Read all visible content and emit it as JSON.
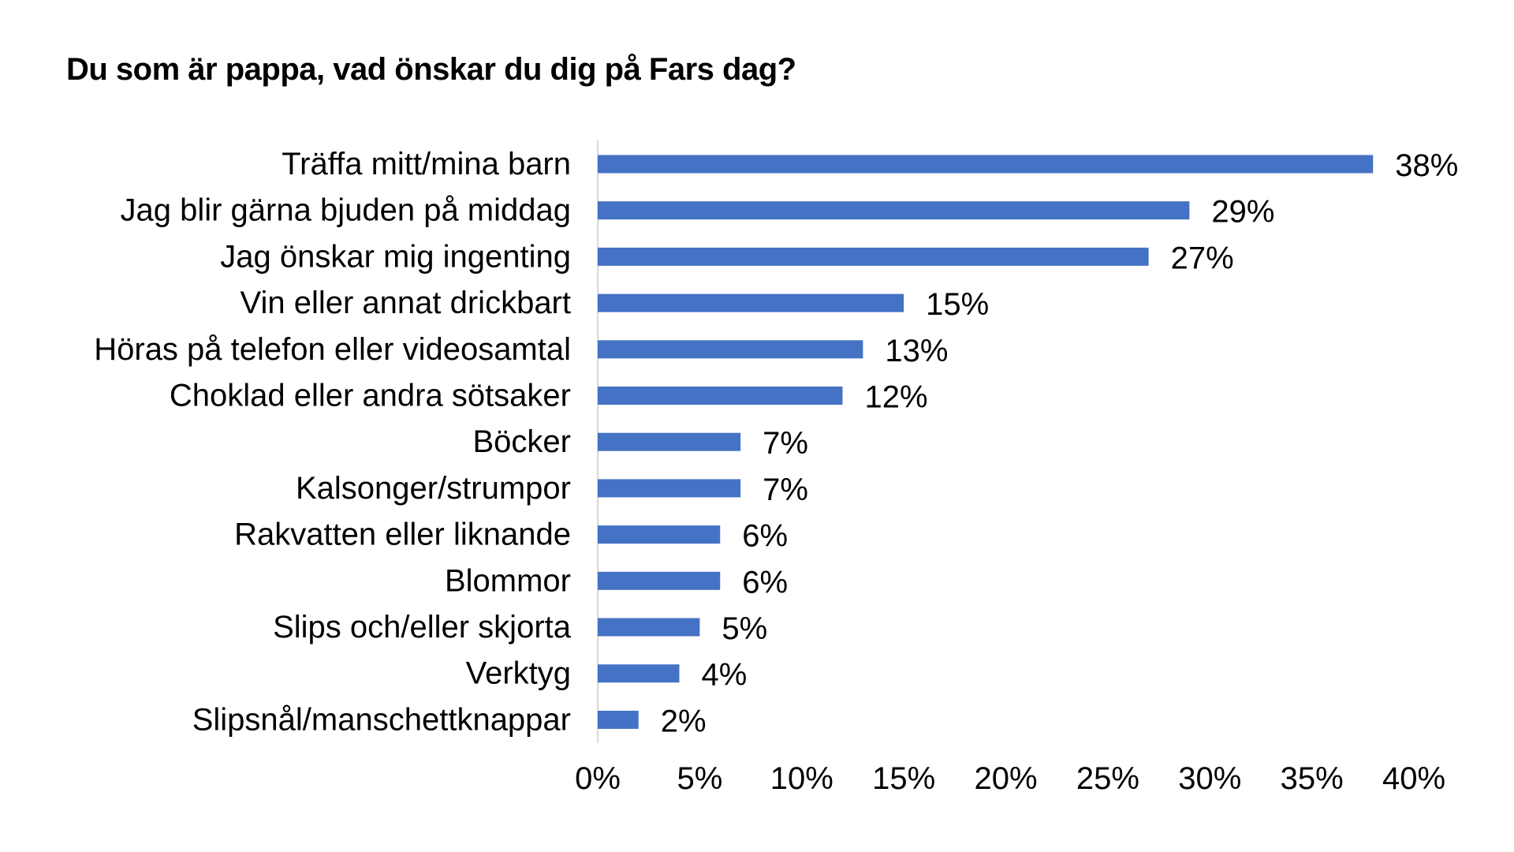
{
  "chart_data": {
    "type": "bar",
    "orientation": "horizontal",
    "title": "Du som är pappa, vad önskar du dig på Fars dag?",
    "categories": [
      "Träffa mitt/mina barn",
      "Jag blir gärna bjuden på middag",
      "Jag önskar mig ingenting",
      "Vin eller annat drickbart",
      "Höras på telefon eller videosamtal",
      "Choklad eller andra sötsaker",
      "Böcker",
      "Kalsonger/strumpor",
      "Rakvatten eller liknande",
      "Blommor",
      "Slips och/eller skjorta",
      "Verktyg",
      "Slipsnål/manschettknappar"
    ],
    "values": [
      38,
      29,
      27,
      15,
      13,
      12,
      7,
      7,
      6,
      6,
      5,
      4,
      2
    ],
    "value_labels": [
      "38%",
      "29%",
      "27%",
      "15%",
      "13%",
      "12%",
      "7%",
      "7%",
      "6%",
      "6%",
      "5%",
      "4%",
      "2%"
    ],
    "xlim": [
      0,
      40
    ],
    "xticks": [
      0,
      5,
      10,
      15,
      20,
      25,
      30,
      35,
      40
    ],
    "xtick_labels": [
      "0%",
      "5%",
      "10%",
      "15%",
      "20%",
      "25%",
      "30%",
      "35%",
      "40%"
    ],
    "xlabel": "",
    "ylabel": "",
    "grid": false,
    "legend": "none",
    "colors": {
      "bar": "#4472c4",
      "axis": "#d9d9d9",
      "text": "#000000"
    }
  }
}
